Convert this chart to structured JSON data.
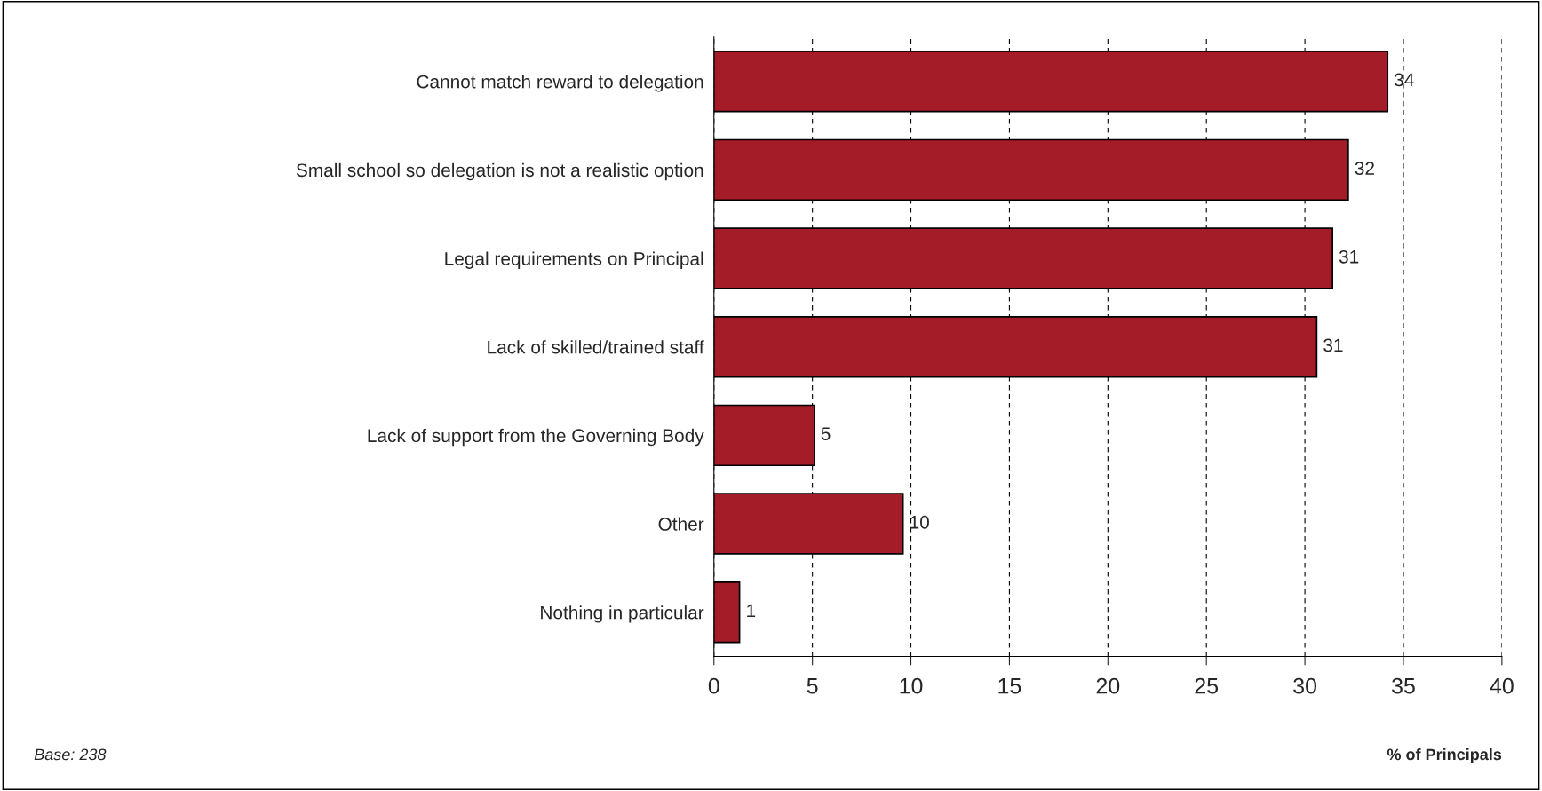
{
  "chart_data": {
    "type": "bar",
    "orientation": "horizontal",
    "categories": [
      "Cannot match reward to delegation",
      "Small school so delegation is not a realistic option",
      "Legal requirements on Principal",
      "Lack of skilled/trained staff",
      "Lack of support from the Governing Body",
      "Other",
      "Nothing in particular"
    ],
    "values": [
      34.2,
      32.2,
      31.4,
      30.6,
      5.1,
      9.6,
      1.3
    ],
    "value_labels": [
      "34",
      "32",
      "31",
      "31",
      "5",
      "10",
      "1"
    ],
    "color": "#a31c27",
    "xlim": [
      0,
      40
    ],
    "xticks": [
      0,
      5,
      10,
      15,
      20,
      25,
      30,
      35,
      40
    ],
    "grid": "x",
    "xlabel": "% of Principals",
    "annotations": [
      "Base: 238"
    ]
  }
}
